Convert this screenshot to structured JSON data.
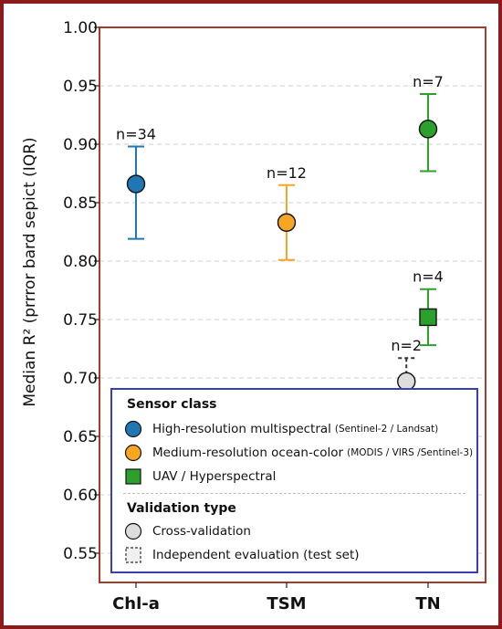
{
  "chart_data": {
    "type": "scatter",
    "ylabel": "Median R² (prrror bard sepict (IQR)",
    "ylim": [
      0.525,
      1.0
    ],
    "yticks": [
      0.55,
      0.6,
      0.65,
      0.7,
      0.75,
      0.8,
      0.85,
      0.9,
      0.95,
      1.0
    ],
    "yticks_labels": [
      "0.55",
      "0.60",
      "0.65",
      "0.70",
      "0.75",
      "0.80",
      "0.85",
      "0.90",
      "0.95",
      "1.00"
    ],
    "categories": [
      "Chl-a",
      "TSM",
      "TN"
    ],
    "grid": "horizontal dashed",
    "legend_position": "bottom",
    "points": [
      {
        "category": "Chl-a",
        "offset": 0.0,
        "median": 0.866,
        "low": 0.819,
        "high": 0.898,
        "label": "n=34",
        "sensor": "High-resolution multispectral",
        "validation": "Cross-validation",
        "marker": "circle",
        "color": "#1f77b4",
        "whisker": "solid"
      },
      {
        "category": "TSM",
        "offset": 0.0,
        "median": 0.833,
        "low": 0.801,
        "high": 0.865,
        "label": "n=12",
        "sensor": "Medium-resolution ocean-color",
        "validation": "Cross-validation",
        "marker": "circle",
        "color": "#f5a623",
        "whisker": "solid"
      },
      {
        "category": "TN",
        "offset": 0.0,
        "median": 0.913,
        "low": 0.877,
        "high": 0.943,
        "label": "n=7",
        "sensor": "UAV / Hyperspectral",
        "validation": "Cross-validation",
        "marker": "circle",
        "color": "#2ca02c",
        "whisker": "solid"
      },
      {
        "category": "TN",
        "offset": 0.0,
        "median": 0.752,
        "low": 0.728,
        "high": 0.776,
        "label": "n=4",
        "sensor": "UAV / Hyperspectral",
        "validation": "Independent evaluation (test set)",
        "marker": "square",
        "color": "#2ca02c",
        "whisker": "solid"
      },
      {
        "category": "TN",
        "offset": -0.48,
        "median": 0.697,
        "low": 0.678,
        "high": 0.717,
        "label": "n=2",
        "sensor": "",
        "validation": "Cross-validation",
        "marker": "circle",
        "color": "#dddddd",
        "whisker": "dashed"
      }
    ]
  },
  "legend": {
    "sensor_title": "Sensor class",
    "sensor_items": [
      {
        "label": "High-resolution multispectral",
        "sub": "(Sentinel-2 / Landsat)",
        "marker": "circle",
        "color": "#1f77b4"
      },
      {
        "label": "Medium-resolution ocean-color",
        "sub": "(MODIS / VIRS /Sentinel-3)",
        "marker": "circle",
        "color": "#f5a623"
      },
      {
        "label": "UAV / Hyperspectral",
        "sub": "",
        "marker": "square",
        "color": "#2ca02c"
      }
    ],
    "validation_title": "Validation type",
    "validation_items": [
      {
        "label": "Cross-validation",
        "marker": "circle",
        "color": "#dddddd"
      },
      {
        "label": "Independent evaluation (test set)",
        "marker": "dashed-square",
        "color": "#f0f0f0"
      }
    ]
  },
  "colors": {
    "outer_frame": "#8b1a1a",
    "plot_frame": "#a83a2a",
    "legend_border": "#3a3fb0",
    "grid": "#cccccc"
  }
}
